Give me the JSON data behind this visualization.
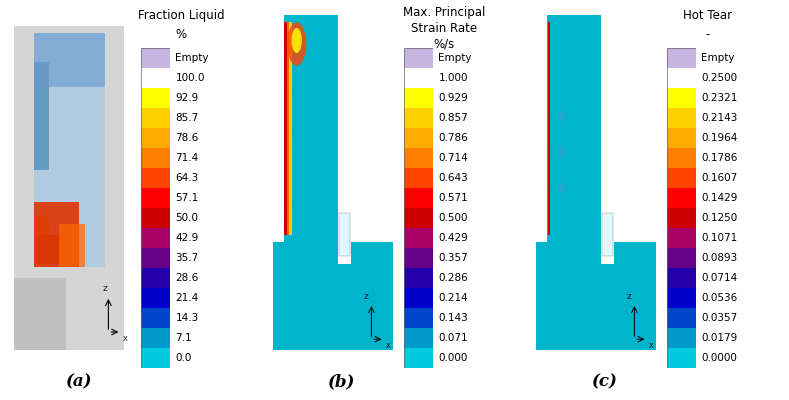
{
  "panels": [
    {
      "label": "(a)",
      "title_line1": "Fraction Liquid",
      "title_line2": "%",
      "title_line3": null,
      "tick_labels": [
        "Empty",
        "100.0",
        "92.9",
        "85.7",
        "78.6",
        "71.4",
        "64.3",
        "57.1",
        "50.0",
        "42.9",
        "35.7",
        "28.6",
        "21.4",
        "14.3",
        "7.1",
        "0.0"
      ]
    },
    {
      "label": "(b)",
      "title_line1": "Max. Principal",
      "title_line2": "Strain Rate",
      "title_line3": "%/s",
      "tick_labels": [
        "Empty",
        "1.000",
        "0.929",
        "0.857",
        "0.786",
        "0.714",
        "0.643",
        "0.571",
        "0.500",
        "0.429",
        "0.357",
        "0.286",
        "0.214",
        "0.143",
        "0.071",
        "0.000"
      ]
    },
    {
      "label": "(c)",
      "title_line1": "Hot Tear",
      "title_line2": "-",
      "title_line3": null,
      "tick_labels": [
        "Empty",
        "0.2500",
        "0.2321",
        "0.2143",
        "0.1964",
        "0.1786",
        "0.1607",
        "0.1429",
        "0.1250",
        "0.1071",
        "0.0893",
        "0.0714",
        "0.0536",
        "0.0357",
        "0.0179",
        "0.0000"
      ]
    }
  ],
  "colorbar_colors": [
    "#c8b4e0",
    "#ffffff",
    "#ffff00",
    "#ffd000",
    "#ffaa00",
    "#ff8000",
    "#ff4400",
    "#ff0000",
    "#cc0000",
    "#aa0066",
    "#660088",
    "#2200aa",
    "#0000cc",
    "#0044cc",
    "#0099cc",
    "#00ccdd"
  ],
  "bg_color": "#ffffff",
  "geom_a_main": "#a8c8e0",
  "geom_a_grey": "#c8c8c8",
  "geom_b_teal": "#00b8cc",
  "geom_b_dark": "#008899",
  "label_fontsize": 12,
  "tick_fontsize": 7.5,
  "title_fontsize": 8.5
}
